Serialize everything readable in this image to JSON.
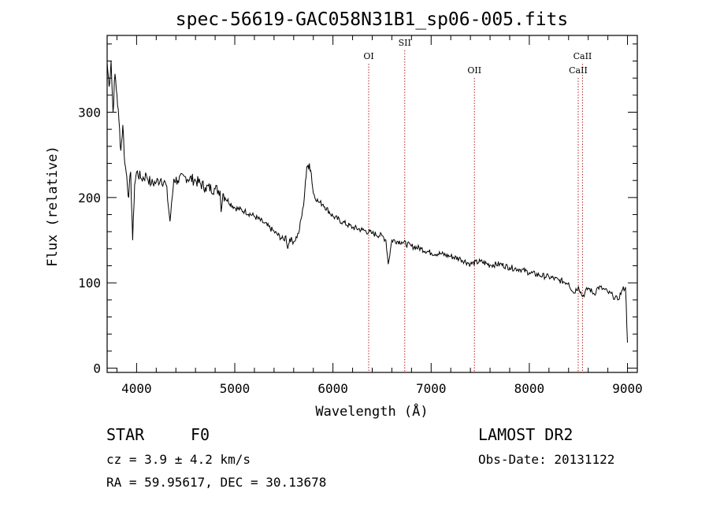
{
  "chart_data": {
    "type": "line",
    "title": "spec-56619-GAC058N31B1_sp06-005.fits",
    "xlabel": "Wavelength (Å)",
    "ylabel": "Flux (relative)",
    "xlim": [
      3700,
      9100
    ],
    "ylim": [
      -5,
      390
    ],
    "x_ticks": [
      4000,
      5000,
      6000,
      7000,
      8000,
      9000
    ],
    "y_ticks": [
      0,
      100,
      200,
      300
    ],
    "grid": false,
    "series": [
      {
        "color": "#000000",
        "x": [
          3700,
          3720,
          3740,
          3760,
          3780,
          3800,
          3820,
          3840,
          3860,
          3880,
          3900,
          3920,
          3940,
          3960,
          3980,
          4000,
          4050,
          4100,
          4150,
          4200,
          4250,
          4300,
          4340,
          4380,
          4420,
          4500,
          4600,
          4700,
          4800,
          4850,
          4861,
          4880,
          4900,
          5000,
          5100,
          5200,
          5300,
          5400,
          5500,
          5520,
          5540,
          5560,
          5600,
          5650,
          5700,
          5720,
          5740,
          5760,
          5780,
          5800,
          5850,
          5900,
          6000,
          6100,
          6200,
          6300,
          6400,
          6500,
          6540,
          6563,
          6600,
          6700,
          6800,
          6900,
          7000,
          7100,
          7200,
          7300,
          7400,
          7500,
          7600,
          7700,
          7800,
          7900,
          8000,
          8100,
          8200,
          8300,
          8400,
          8450,
          8500,
          8542,
          8600,
          8662,
          8700,
          8750,
          8800,
          8850,
          8900,
          8950,
          8980,
          9000
        ],
        "y": [
          358,
          330,
          360,
          300,
          345,
          320,
          290,
          255,
          285,
          240,
          225,
          200,
          230,
          150,
          215,
          230,
          222,
          226,
          216,
          218,
          222,
          215,
          172,
          222,
          220,
          224,
          220,
          212,
          210,
          208,
          183,
          205,
          200,
          188,
          184,
          178,
          170,
          160,
          150,
          155,
          140,
          152,
          148,
          158,
          190,
          220,
          236,
          240,
          228,
          205,
          195,
          192,
          178,
          171,
          165,
          162,
          158,
          155,
          150,
          122,
          150,
          148,
          143,
          140,
          135,
          134,
          131,
          128,
          122,
          125,
          121,
          122,
          118,
          116,
          112,
          109,
          107,
          103,
          100,
          88,
          96,
          84,
          94,
          87,
          95,
          93,
          89,
          85,
          80,
          92,
          95,
          30
        ]
      }
    ],
    "spectral_lines": [
      {
        "label": "OI",
        "wavelength": 6364
      },
      {
        "label": "SII",
        "wavelength": 6731
      },
      {
        "label": "OII",
        "wavelength": 7441
      },
      {
        "label": "CaII",
        "wavelength": 8542
      },
      {
        "label": "CaII",
        "wavelength": 8498
      }
    ]
  },
  "info": {
    "object_class": "STAR",
    "subclass": "F0",
    "redshift": "cz = 3.9 ± 4.2 km/s",
    "coords": "RA =  59.95617, DEC =  30.13678",
    "survey": "LAMOST DR2",
    "obs_date": "Obs-Date: 20131122"
  },
  "colors": {
    "spectrum": "#000000",
    "line_marker": "#b22222"
  }
}
